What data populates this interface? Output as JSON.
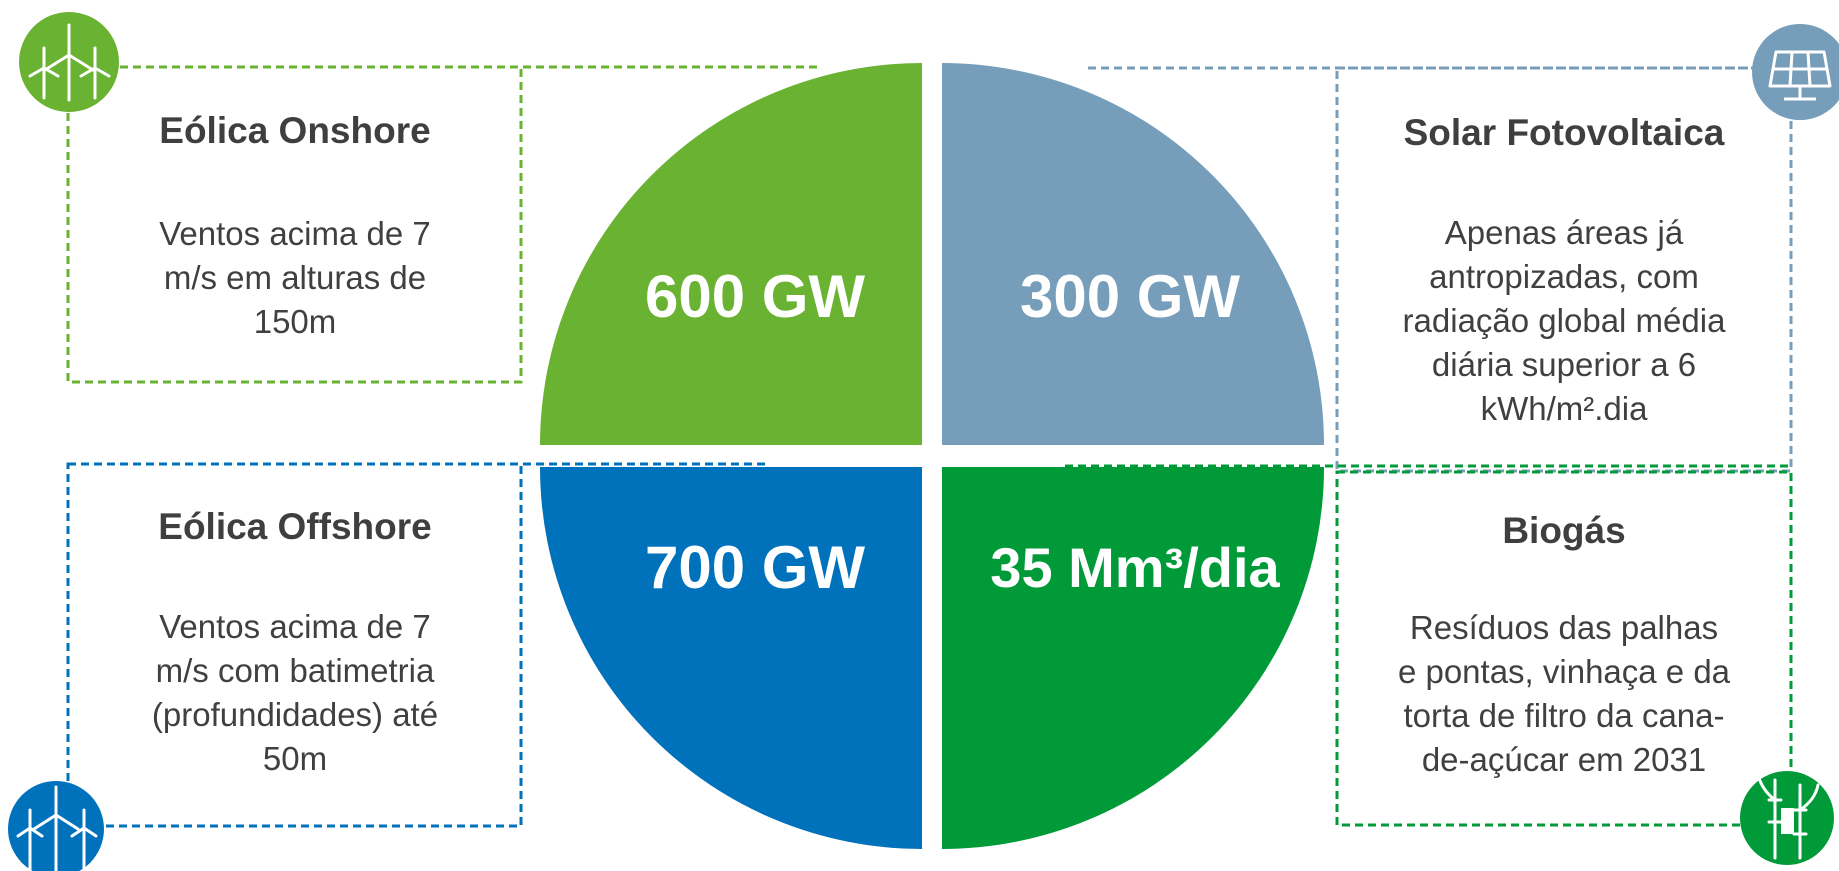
{
  "colors": {
    "onshore": "#6ab232",
    "solar": "#769db9",
    "offshore": "#0071bb",
    "biogas": "#009a39"
  },
  "quadrants": {
    "onshore": {
      "title": "Eólica Onshore",
      "value": "600 GW",
      "description": [
        "Ventos acima de 7",
        "m/s em alturas de",
        "150m"
      ],
      "icon": "wind-turbines-icon"
    },
    "solar": {
      "title": "Solar Fotovoltaica",
      "value": "300 GW",
      "description": [
        "Apenas áreas já",
        "antropizadas, com",
        "radiação global média",
        "diária superior a 6",
        "kWh/m².dia"
      ],
      "icon": "solar-panel-icon"
    },
    "offshore": {
      "title": "Eólica Offshore",
      "value": "700 GW",
      "description": [
        "Ventos acima de 7",
        "m/s com batimetria",
        "(profundidades) até",
        "50m"
      ],
      "icon": "offshore-wind-icon"
    },
    "biogas": {
      "title": "Biogás",
      "value": "35 Mm³/dia",
      "description": [
        "Resíduos das palhas",
        "e pontas, vinhaça e da",
        "torta de filtro da cana-",
        "de-açúcar em 2031"
      ],
      "icon": "sugarcane-icon"
    }
  }
}
